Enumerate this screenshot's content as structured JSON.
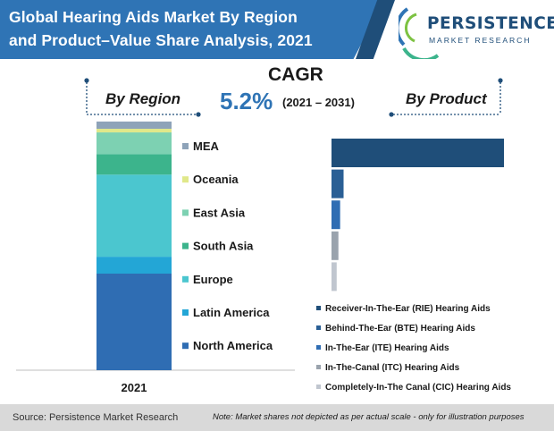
{
  "header": {
    "title_line1": "Global Hearing Aids Market By Region",
    "title_line2": "and Product–Value Share Analysis, 2021",
    "logo_name": "PERSISTENCE",
    "logo_sub": "MARKET RESEARCH"
  },
  "cagr": {
    "label": "CAGR",
    "value": "5.2%",
    "period": "(2021 – 2031)"
  },
  "sections": {
    "by_region": "By Region",
    "by_product": "By Product"
  },
  "chart_data": [
    {
      "type": "bar",
      "title": "By Region",
      "stacked": true,
      "categories": [
        "2021"
      ],
      "series": [
        {
          "name": "North America",
          "values": [
            40.0
          ],
          "color": "#2f6db3"
        },
        {
          "name": "Latin America",
          "values": [
            7.0
          ],
          "color": "#23a6d6"
        },
        {
          "name": "Europe",
          "values": [
            34.0
          ],
          "color": "#4bc6cf"
        },
        {
          "name": "South Asia",
          "values": [
            8.5
          ],
          "color": "#3cb48c"
        },
        {
          "name": "East Asia",
          "values": [
            9.0
          ],
          "color": "#7dd1b2"
        },
        {
          "name": "Oceania",
          "values": [
            1.5
          ],
          "color": "#e0e88a"
        },
        {
          "name": "MEA",
          "values": [
            3.0
          ],
          "color": "#8ea3b9"
        }
      ],
      "legend_order": [
        "MEA",
        "Oceania",
        "East Asia",
        "South Asia",
        "Europe",
        "Latin America",
        "North America"
      ],
      "legend": "right",
      "ylim": [
        0,
        100
      ]
    },
    {
      "type": "bar",
      "orientation": "horizontal",
      "title": "By Product",
      "categories": [
        "Receiver-In-The-Ear (RIE) Hearing Aids",
        "Behind-The-Ear (BTE) Hearing Aids",
        "In-The-Ear (ITE) Hearing Aids",
        "In-The-Canal (ITC) Hearing Aids",
        "Completely-In-The Canal (CIC) Hearing Aids"
      ],
      "values": [
        100,
        7,
        5,
        4,
        3
      ],
      "colors": [
        "#1f4e79",
        "#2a5f95",
        "#2f6db3",
        "#9aa3ad",
        "#c0c6cf"
      ],
      "legend": "bottom",
      "xlim": [
        0,
        100
      ]
    }
  ],
  "footer": {
    "source": "Source: Persistence Market Research",
    "note": "Note: Market shares not depicted as per actual scale - only for illustration purposes"
  },
  "colors": {
    "brand_blue": "#2f74b5",
    "brand_dark": "#1f4e79",
    "footer_bg": "#d9d9d9"
  }
}
